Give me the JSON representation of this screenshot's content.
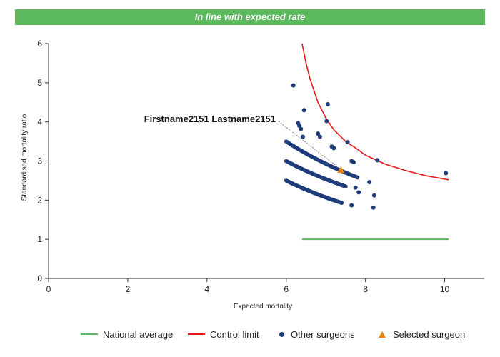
{
  "banner": {
    "text": "In line with expected rate",
    "color": "#5cb85c"
  },
  "chart_data": {
    "type": "scatter",
    "xlabel": "Expected mortality",
    "ylabel": "Standardised mortality ratio",
    "xlim": [
      0,
      11
    ],
    "ylim": [
      0,
      6
    ],
    "xticks": [
      "0",
      "2",
      "4",
      "6",
      "8",
      "10"
    ],
    "yticks": [
      "0",
      "1",
      "2",
      "3",
      "4",
      "5",
      "6"
    ],
    "grid": false,
    "legend_position": "bottom",
    "series": [
      {
        "name": "National average",
        "kind": "line",
        "color": "#5cb85c",
        "points": [
          [
            6.4,
            1.0
          ],
          [
            10.1,
            1.0
          ]
        ]
      },
      {
        "name": "Control limit",
        "kind": "line",
        "color": "#e31a1c",
        "points": [
          [
            6.4,
            6.0
          ],
          [
            6.5,
            5.5
          ],
          [
            6.6,
            5.1
          ],
          [
            6.7,
            4.8
          ],
          [
            6.8,
            4.5
          ],
          [
            7.0,
            4.1
          ],
          [
            7.2,
            3.8
          ],
          [
            7.5,
            3.5
          ],
          [
            7.8,
            3.3
          ],
          [
            8.0,
            3.15
          ],
          [
            8.5,
            2.92
          ],
          [
            9.0,
            2.76
          ],
          [
            9.5,
            2.63
          ],
          [
            10.1,
            2.52
          ]
        ]
      },
      {
        "name": "Other surgeons",
        "kind": "scatter",
        "color": "#1f3d7a",
        "band_high": {
          "x_from": 6.0,
          "x_to": 7.8,
          "y_at_start": 3.5,
          "y_at_end": 2.58
        },
        "band_mid": {
          "x_from": 6.0,
          "x_to": 7.5,
          "y_at_start": 3.0,
          "y_at_end": 2.35
        },
        "band_low": {
          "x_from": 6.0,
          "x_to": 7.4,
          "y_at_start": 2.5,
          "y_at_end": 1.93
        },
        "points": [
          [
            6.18,
            4.93
          ],
          [
            6.45,
            4.3
          ],
          [
            7.05,
            4.45
          ],
          [
            7.02,
            4.02
          ],
          [
            6.3,
            3.97
          ],
          [
            6.33,
            3.9
          ],
          [
            6.37,
            3.82
          ],
          [
            6.8,
            3.7
          ],
          [
            6.85,
            3.62
          ],
          [
            6.42,
            3.62
          ],
          [
            7.15,
            3.37
          ],
          [
            7.2,
            3.33
          ],
          [
            7.55,
            3.48
          ],
          [
            7.65,
            3.0
          ],
          [
            7.7,
            2.97
          ],
          [
            8.3,
            3.02
          ],
          [
            8.1,
            2.46
          ],
          [
            7.75,
            2.32
          ],
          [
            7.83,
            2.2
          ],
          [
            8.22,
            2.12
          ],
          [
            7.65,
            1.87
          ],
          [
            8.2,
            1.81
          ],
          [
            10.03,
            2.69
          ]
        ]
      },
      {
        "name": "Selected surgeon",
        "kind": "scatter",
        "marker": "triangle",
        "color": "#e8820c",
        "points": [
          [
            7.38,
            2.77
          ]
        ]
      }
    ],
    "annotation": {
      "text": "Firstname2151 Lastname2151",
      "x": 7.38,
      "y": 2.77
    }
  }
}
